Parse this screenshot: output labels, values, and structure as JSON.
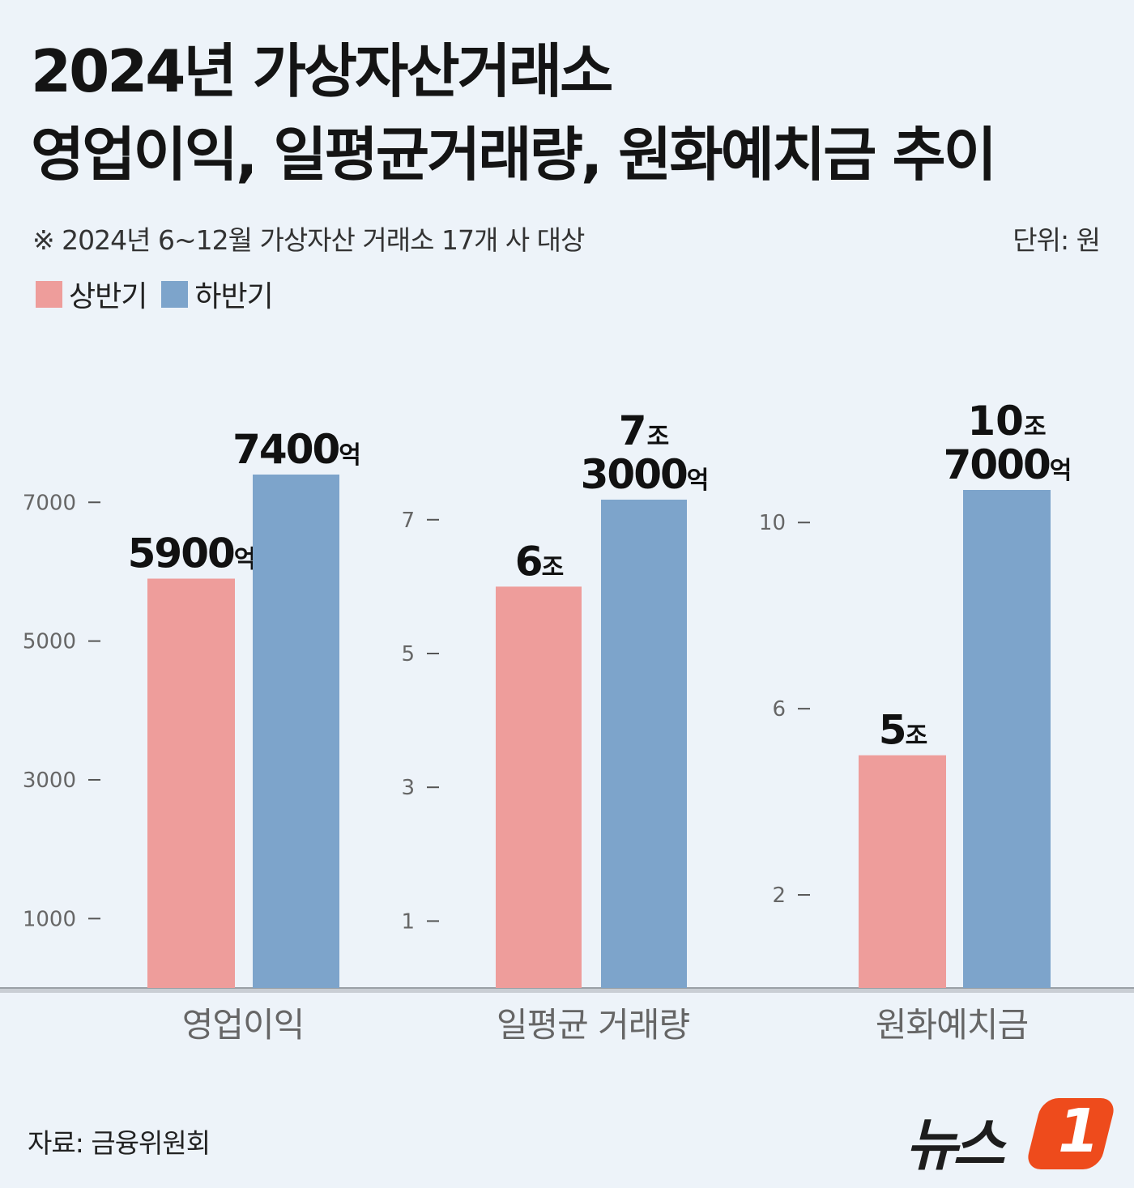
{
  "title_line1": "2024년 가상자산거래소",
  "title_line2": "영업이익, 일평균거래량, 원화예치금 추이",
  "note": "※ 2024년 6~12월 가상자산 거래소 17개 사 대상",
  "unit": "단위: 원",
  "legend": [
    {
      "label": "상반기",
      "color": "#ee9d9b"
    },
    {
      "label": "하반기",
      "color": "#7da4cb"
    }
  ],
  "source": "자료: 금융위원회",
  "logo_text": "뉴스",
  "logo_mark": "1",
  "chart_data": [
    {
      "type": "bar",
      "category": "영업이익",
      "series": [
        {
          "name": "상반기",
          "value": 5900,
          "label_num": "5900",
          "label_unit": "억",
          "label_prefix": "",
          "label_prefix_unit": ""
        },
        {
          "name": "하반기",
          "value": 7400,
          "label_num": "7400",
          "label_unit": "억",
          "label_prefix": "",
          "label_prefix_unit": ""
        }
      ],
      "ticks": [
        1000,
        3000,
        5000,
        7000
      ],
      "ylim": [
        0,
        7400
      ]
    },
    {
      "type": "bar",
      "category": "일평균 거래량",
      "series": [
        {
          "name": "상반기",
          "value": 6,
          "label_num": "6",
          "label_unit": "조",
          "label_prefix": "",
          "label_prefix_unit": ""
        },
        {
          "name": "하반기",
          "value": 7.3,
          "label_num": "3000",
          "label_unit": "억",
          "label_prefix": "7",
          "label_prefix_unit": "조"
        }
      ],
      "ticks": [
        1,
        3,
        5,
        7
      ],
      "ylim": [
        0,
        7.3
      ]
    },
    {
      "type": "bar",
      "category": "원화예치금",
      "series": [
        {
          "name": "상반기",
          "value": 5,
          "label_num": "5",
          "label_unit": "조",
          "label_prefix": "",
          "label_prefix_unit": ""
        },
        {
          "name": "하반기",
          "value": 10.7,
          "label_num": "7000",
          "label_unit": "억",
          "label_prefix": "10",
          "label_prefix_unit": "조"
        }
      ],
      "ticks": [
        2,
        6,
        10
      ],
      "ylim": [
        0,
        10.7
      ]
    }
  ]
}
